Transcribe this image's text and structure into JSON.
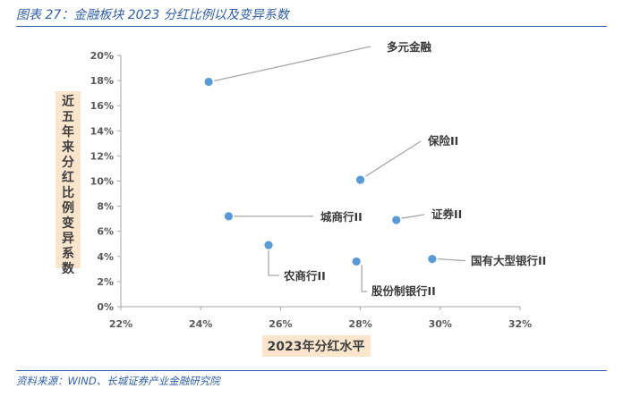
{
  "figure": {
    "caption": "图表 27：金融板块 2023 分红比例以及变异系数",
    "source": "资料来源：WIND、长城证券产业金融研究院"
  },
  "colors": {
    "accent": "#2f5fa8",
    "marker": "#5b9bd5",
    "axis_title_bg": "#fbe5cc",
    "axis_line": "#a6a6a6",
    "leader": "#a6a6a6"
  },
  "chart_data": {
    "type": "scatter",
    "xlabel": "2023年分红水平",
    "ylabel": "近五年来分红比例变异系数",
    "xlim": [
      0.22,
      0.32
    ],
    "ylim": [
      0,
      0.2
    ],
    "x_ticks": [
      0.22,
      0.24,
      0.26,
      0.28,
      0.3,
      0.32
    ],
    "y_ticks": [
      0,
      0.02,
      0.04,
      0.06,
      0.08,
      0.1,
      0.12,
      0.14,
      0.16,
      0.18,
      0.2
    ],
    "x_tick_labels": [
      "22%",
      "24%",
      "26%",
      "28%",
      "30%",
      "32%"
    ],
    "y_tick_labels": [
      "0%",
      "2%",
      "4%",
      "6%",
      "8%",
      "10%",
      "12%",
      "14%",
      "16%",
      "18%",
      "20%"
    ],
    "grid": false,
    "points": [
      {
        "label": "多元金融",
        "x": 0.242,
        "y": 0.179
      },
      {
        "label": "保险II",
        "x": 0.28,
        "y": 0.101
      },
      {
        "label": "城商行II",
        "x": 0.247,
        "y": 0.072
      },
      {
        "label": "证券II",
        "x": 0.289,
        "y": 0.069
      },
      {
        "label": "农商行II",
        "x": 0.257,
        "y": 0.049
      },
      {
        "label": "国有大型银行II",
        "x": 0.298,
        "y": 0.038
      },
      {
        "label": "股份制银行II",
        "x": 0.279,
        "y": 0.036
      }
    ]
  }
}
